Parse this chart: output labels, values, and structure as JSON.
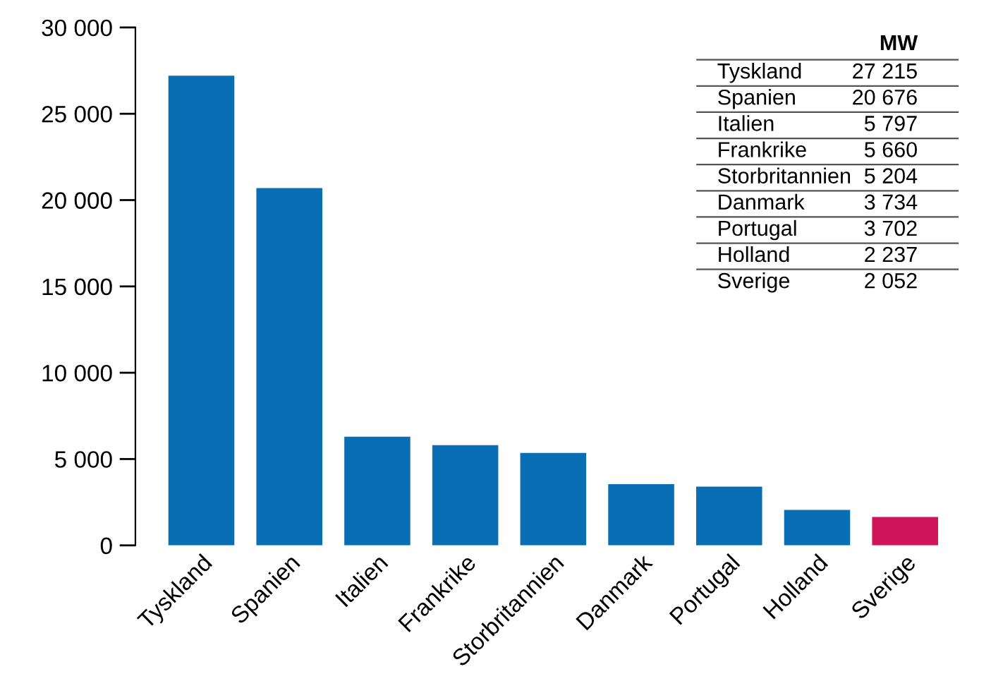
{
  "chart_data": {
    "type": "bar",
    "categories": [
      "Tyskland",
      "Spanien",
      "Italien",
      "Frankrike",
      "Storbritannien",
      "Danmark",
      "Portugal",
      "Holland",
      "Sverige"
    ],
    "values": [
      27200,
      20700,
      6300,
      5800,
      5350,
      3550,
      3400,
      2050,
      1650
    ],
    "colors": [
      "#0a6eb4",
      "#0a6eb4",
      "#0a6eb4",
      "#0a6eb4",
      "#0a6eb4",
      "#0a6eb4",
      "#0a6eb4",
      "#0a6eb4",
      "#d0145a"
    ],
    "ylim": [
      0,
      30000
    ],
    "yticks": [
      {
        "value": 0,
        "label": "0"
      },
      {
        "value": 5000,
        "label": "5 000"
      },
      {
        "value": 10000,
        "label": "10 000"
      },
      {
        "value": 15000,
        "label": "15 000"
      },
      {
        "value": 20000,
        "label": "20 000"
      },
      {
        "value": 25000,
        "label": "25 000"
      },
      {
        "value": 30000,
        "label": "30 000"
      }
    ],
    "grid": false,
    "annotations": [
      "MW",
      "Tyskland 27 215",
      "Spanien 20 676",
      "Italien 5 797",
      "Frankrike 5 660",
      "Storbritannien 5 204",
      "Danmark 3 734",
      "Portugal 3 702",
      "Holland 2 237",
      "Sverige 2 052"
    ]
  }
}
